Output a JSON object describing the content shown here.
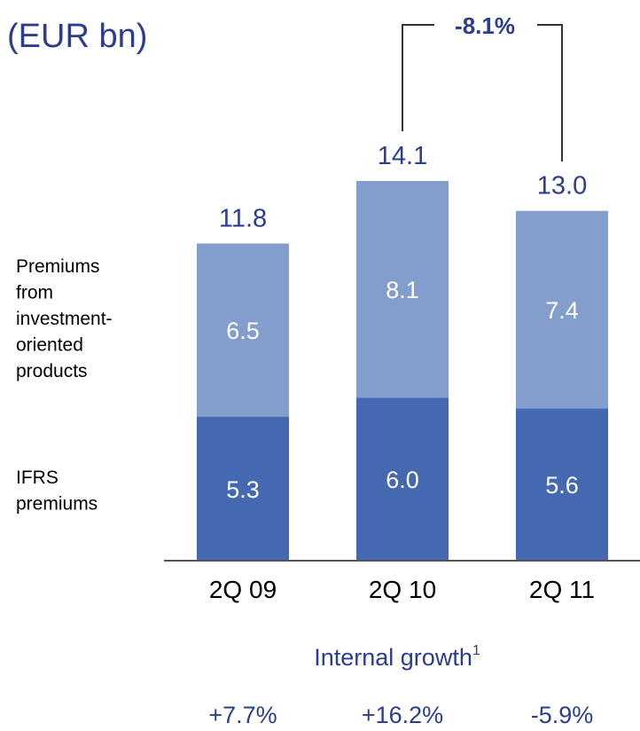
{
  "chart_data": {
    "type": "bar",
    "stacked": true,
    "unit_label": "(EUR bn)",
    "categories": [
      "2Q 09",
      "2Q 10",
      "2Q 11"
    ],
    "series": [
      {
        "name": "IFRS premiums",
        "values": [
          5.3,
          6.0,
          5.6
        ],
        "color": "#4469b0"
      },
      {
        "name": "Premiums from investment-oriented products",
        "values": [
          6.5,
          8.1,
          7.4
        ],
        "color": "#839dcc"
      }
    ],
    "totals": [
      11.8,
      14.1,
      13.0
    ],
    "ylim": [
      0,
      14.1
    ],
    "grid": false,
    "legend_placement": "left",
    "legend_lines": {
      "series_1": [
        "Premiums",
        "from",
        "investment-",
        "oriented",
        "products"
      ],
      "series_0": [
        "IFRS",
        "premiums"
      ]
    },
    "change_annotation": {
      "label": "-8.1%",
      "from": "2Q 10",
      "to": "2Q 11"
    },
    "growth": {
      "title": "Internal growth",
      "footnote_mark": "1",
      "values": [
        "+7.7%",
        "+16.2%",
        "-5.9%"
      ]
    }
  }
}
